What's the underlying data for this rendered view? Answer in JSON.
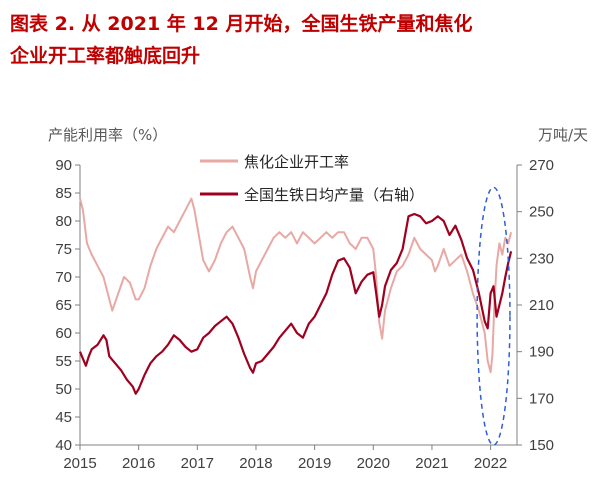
{
  "title": {
    "line1": "图表 2.  从 2021 年 12 月开始，全国生铁产量和焦化",
    "line2": "企业开工率都触底回升"
  },
  "chart_data": {
    "type": "line",
    "left_axis_unit": "产能利用率（%）",
    "right_axis_unit": "万吨/天",
    "xlim": [
      2015,
      2022.45
    ],
    "x_ticks": [
      "2015",
      "2016",
      "2017",
      "2018",
      "2019",
      "2020",
      "2021",
      "2022"
    ],
    "y_left": {
      "min": 40,
      "max": 90,
      "ticks": [
        "40",
        "45",
        "50",
        "55",
        "60",
        "65",
        "70",
        "75",
        "80",
        "85",
        "90"
      ]
    },
    "y_right": {
      "min": 150,
      "max": 270,
      "ticks": [
        "150",
        "170",
        "190",
        "210",
        "230",
        "250",
        "270"
      ]
    },
    "series": [
      {
        "name": "焦化企业开工率",
        "axis": "left",
        "color": "#e8a8a4",
        "points": [
          [
            2015.0,
            84
          ],
          [
            2015.05,
            82
          ],
          [
            2015.12,
            76
          ],
          [
            2015.2,
            74
          ],
          [
            2015.3,
            72
          ],
          [
            2015.4,
            70
          ],
          [
            2015.5,
            66
          ],
          [
            2015.55,
            64
          ],
          [
            2015.65,
            67
          ],
          [
            2015.75,
            70
          ],
          [
            2015.85,
            69
          ],
          [
            2015.95,
            66
          ],
          [
            2016.0,
            66
          ],
          [
            2016.1,
            68
          ],
          [
            2016.2,
            72
          ],
          [
            2016.3,
            75
          ],
          [
            2016.4,
            77
          ],
          [
            2016.5,
            79
          ],
          [
            2016.6,
            78
          ],
          [
            2016.7,
            80
          ],
          [
            2016.8,
            82
          ],
          [
            2016.9,
            84
          ],
          [
            2016.95,
            82
          ],
          [
            2017.0,
            79
          ],
          [
            2017.1,
            73
          ],
          [
            2017.2,
            71
          ],
          [
            2017.3,
            73
          ],
          [
            2017.4,
            76
          ],
          [
            2017.5,
            78
          ],
          [
            2017.6,
            79
          ],
          [
            2017.7,
            77
          ],
          [
            2017.8,
            75
          ],
          [
            2017.9,
            70
          ],
          [
            2017.95,
            68
          ],
          [
            2018.0,
            71
          ],
          [
            2018.1,
            73
          ],
          [
            2018.2,
            75
          ],
          [
            2018.3,
            77
          ],
          [
            2018.4,
            78
          ],
          [
            2018.5,
            77
          ],
          [
            2018.6,
            78
          ],
          [
            2018.7,
            76
          ],
          [
            2018.8,
            78
          ],
          [
            2018.9,
            77
          ],
          [
            2019.0,
            76
          ],
          [
            2019.1,
            77
          ],
          [
            2019.2,
            78
          ],
          [
            2019.3,
            77
          ],
          [
            2019.4,
            78
          ],
          [
            2019.5,
            78
          ],
          [
            2019.6,
            76
          ],
          [
            2019.7,
            75
          ],
          [
            2019.8,
            77
          ],
          [
            2019.9,
            77
          ],
          [
            2020.0,
            75
          ],
          [
            2020.05,
            70
          ],
          [
            2020.1,
            62
          ],
          [
            2020.15,
            59
          ],
          [
            2020.2,
            64
          ],
          [
            2020.3,
            68
          ],
          [
            2020.4,
            71
          ],
          [
            2020.5,
            72
          ],
          [
            2020.6,
            74
          ],
          [
            2020.7,
            77
          ],
          [
            2020.8,
            75
          ],
          [
            2020.9,
            74
          ],
          [
            2021.0,
            73
          ],
          [
            2021.05,
            71
          ],
          [
            2021.1,
            72
          ],
          [
            2021.2,
            75
          ],
          [
            2021.3,
            72
          ],
          [
            2021.4,
            73
          ],
          [
            2021.5,
            74
          ],
          [
            2021.6,
            71
          ],
          [
            2021.7,
            67
          ],
          [
            2021.8,
            64
          ],
          [
            2021.85,
            62
          ],
          [
            2021.9,
            60
          ],
          [
            2021.95,
            55
          ],
          [
            2022.0,
            53
          ],
          [
            2022.03,
            56
          ],
          [
            2022.06,
            64
          ],
          [
            2022.1,
            72
          ],
          [
            2022.15,
            76
          ],
          [
            2022.2,
            74
          ],
          [
            2022.25,
            77
          ],
          [
            2022.3,
            76
          ],
          [
            2022.35,
            78
          ]
        ]
      },
      {
        "name": "全国生铁日均产量（右轴）",
        "axis": "right",
        "color": "#a00020",
        "points": [
          [
            2015.0,
            190
          ],
          [
            2015.05,
            187
          ],
          [
            2015.1,
            184
          ],
          [
            2015.15,
            188
          ],
          [
            2015.2,
            191
          ],
          [
            2015.3,
            193
          ],
          [
            2015.4,
            197
          ],
          [
            2015.45,
            195
          ],
          [
            2015.5,
            188
          ],
          [
            2015.6,
            185
          ],
          [
            2015.7,
            182
          ],
          [
            2015.8,
            178
          ],
          [
            2015.9,
            175
          ],
          [
            2015.95,
            172
          ],
          [
            2016.0,
            174
          ],
          [
            2016.1,
            180
          ],
          [
            2016.2,
            185
          ],
          [
            2016.3,
            188
          ],
          [
            2016.4,
            190
          ],
          [
            2016.5,
            193
          ],
          [
            2016.6,
            197
          ],
          [
            2016.7,
            195
          ],
          [
            2016.8,
            192
          ],
          [
            2016.9,
            190
          ],
          [
            2017.0,
            191
          ],
          [
            2017.1,
            196
          ],
          [
            2017.2,
            198
          ],
          [
            2017.3,
            201
          ],
          [
            2017.4,
            203
          ],
          [
            2017.5,
            205
          ],
          [
            2017.6,
            202
          ],
          [
            2017.7,
            196
          ],
          [
            2017.8,
            189
          ],
          [
            2017.9,
            183
          ],
          [
            2017.95,
            181
          ],
          [
            2018.0,
            185
          ],
          [
            2018.1,
            186
          ],
          [
            2018.2,
            189
          ],
          [
            2018.3,
            192
          ],
          [
            2018.4,
            196
          ],
          [
            2018.5,
            199
          ],
          [
            2018.6,
            202
          ],
          [
            2018.7,
            198
          ],
          [
            2018.8,
            196
          ],
          [
            2018.9,
            202
          ],
          [
            2019.0,
            205
          ],
          [
            2019.1,
            210
          ],
          [
            2019.2,
            215
          ],
          [
            2019.3,
            223
          ],
          [
            2019.4,
            229
          ],
          [
            2019.5,
            230
          ],
          [
            2019.6,
            226
          ],
          [
            2019.7,
            215
          ],
          [
            2019.8,
            220
          ],
          [
            2019.9,
            223
          ],
          [
            2020.0,
            224
          ],
          [
            2020.05,
            215
          ],
          [
            2020.1,
            205
          ],
          [
            2020.15,
            210
          ],
          [
            2020.2,
            218
          ],
          [
            2020.3,
            225
          ],
          [
            2020.4,
            228
          ],
          [
            2020.5,
            234
          ],
          [
            2020.6,
            248
          ],
          [
            2020.7,
            249
          ],
          [
            2020.8,
            248
          ],
          [
            2020.9,
            245
          ],
          [
            2021.0,
            246
          ],
          [
            2021.1,
            248
          ],
          [
            2021.2,
            246
          ],
          [
            2021.3,
            240
          ],
          [
            2021.4,
            244
          ],
          [
            2021.5,
            238
          ],
          [
            2021.6,
            230
          ],
          [
            2021.7,
            225
          ],
          [
            2021.8,
            215
          ],
          [
            2021.9,
            203
          ],
          [
            2021.95,
            200
          ],
          [
            2022.0,
            215
          ],
          [
            2022.05,
            218
          ],
          [
            2022.1,
            205
          ],
          [
            2022.15,
            210
          ],
          [
            2022.2,
            215
          ],
          [
            2022.25,
            222
          ],
          [
            2022.3,
            228
          ],
          [
            2022.35,
            233
          ]
        ]
      }
    ],
    "annotation": {
      "shape": "dashed-ellipse",
      "color": "#2e5fd6",
      "x_center": 2022.05,
      "y_left_center": 63,
      "x_radius": 0.28,
      "y_left_radius": 23
    }
  }
}
